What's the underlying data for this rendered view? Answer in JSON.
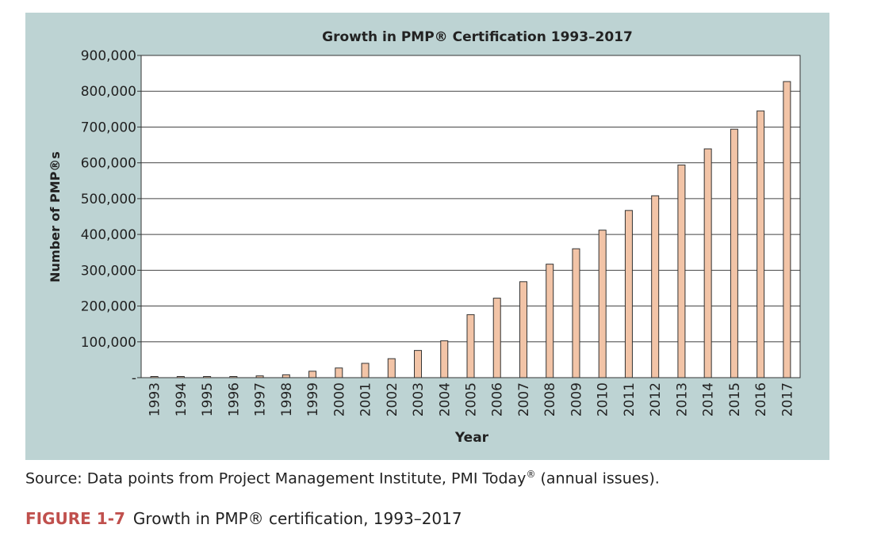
{
  "colors": {
    "panel_bg": "#bdd3d3",
    "plot_bg": "#ffffff",
    "bar_fill": "#f2c4a7",
    "bar_stroke": "#333333",
    "caption_label": "#c0504d"
  },
  "chart_data": {
    "type": "bar",
    "title": "Growth in PMP® Certification 1993–2017",
    "xlabel": "Year",
    "ylabel": "Number of PMP®s",
    "ylim": [
      0,
      900000
    ],
    "yticks": [
      {
        "value": 0,
        "label": "-"
      },
      {
        "value": 100000,
        "label": "100,000"
      },
      {
        "value": 200000,
        "label": "200,000"
      },
      {
        "value": 300000,
        "label": "300,000"
      },
      {
        "value": 400000,
        "label": "400,000"
      },
      {
        "value": 500000,
        "label": "500,000"
      },
      {
        "value": 600000,
        "label": "600,000"
      },
      {
        "value": 700000,
        "label": "700,000"
      },
      {
        "value": 800000,
        "label": "800,000"
      },
      {
        "value": 900000,
        "label": "900,000"
      }
    ],
    "grid": true,
    "categories": [
      "1993",
      "1994",
      "1995",
      "1996",
      "1997",
      "1998",
      "1999",
      "2000",
      "2001",
      "2002",
      "2003",
      "2004",
      "2005",
      "2006",
      "2007",
      "2008",
      "2009",
      "2010",
      "2011",
      "2012",
      "2013",
      "2014",
      "2015",
      "2016",
      "2017"
    ],
    "values": [
      1000,
      1500,
      2000,
      3000,
      5000,
      8000,
      18000,
      27000,
      40000,
      53000,
      76000,
      103000,
      176000,
      222000,
      268000,
      317000,
      360000,
      412000,
      467000,
      508000,
      594000,
      639000,
      694000,
      745000,
      827000
    ]
  },
  "source": {
    "prefix": "Source: Data points from Project Management Institute, PMI Today",
    "sup": "®",
    "suffix": " (annual issues)."
  },
  "caption": {
    "label": "FIGURE 1-7",
    "text": "Growth in PMP® certification, 1993–2017"
  }
}
